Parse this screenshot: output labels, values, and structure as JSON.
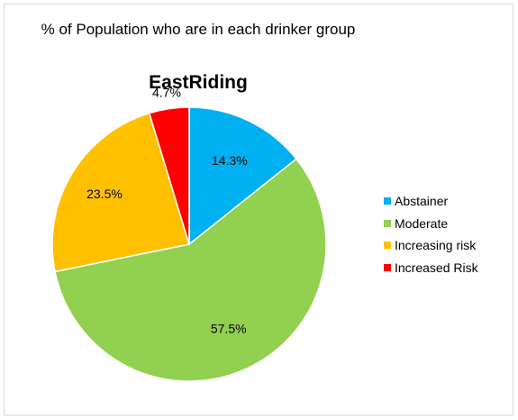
{
  "chart_data": {
    "type": "pie",
    "title": "% of Population  who are in each drinker group",
    "subtitle": "EastRiding",
    "categories": [
      "Abstainer",
      "Moderate",
      "Increasing risk",
      "Increased Risk"
    ],
    "values": [
      14.3,
      57.5,
      23.5,
      4.7
    ],
    "labels": [
      "14.3%",
      "57.5%",
      "23.5%",
      "4.7%"
    ],
    "colors": [
      "#00b0f0",
      "#92d050",
      "#ffc000",
      "#ff0000"
    ],
    "legend_position": "right"
  }
}
